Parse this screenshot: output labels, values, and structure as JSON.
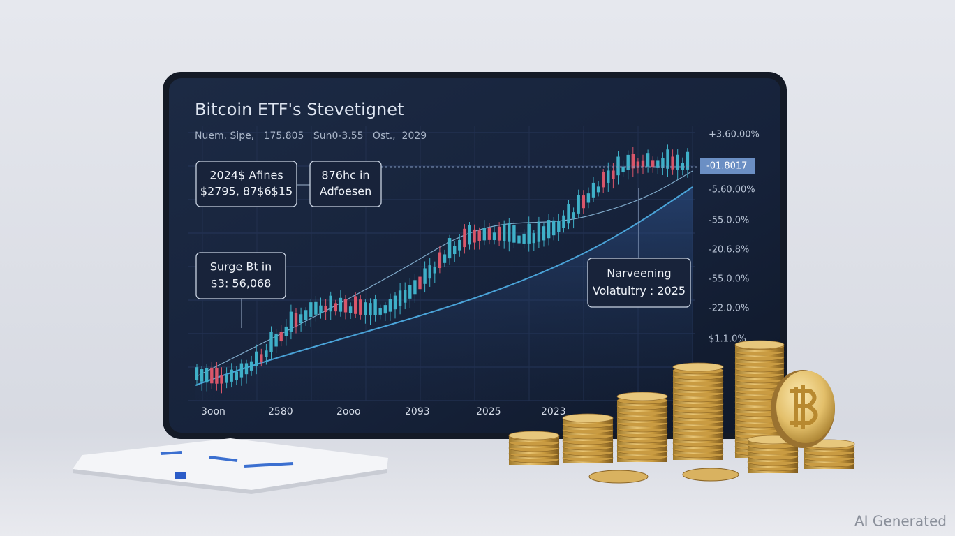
{
  "screen": {
    "title": "Bitcoin ETF's Stevetignet",
    "subtitle": "Nuem. Sipe,   175.805   Sun0-3.55   Ost.,  2029",
    "callouts": [
      {
        "line1": "2024$ Afines",
        "line2": "$2795, 87$6$15"
      },
      {
        "line1": "876hc in",
        "line2": "Adfoesen"
      },
      {
        "line1": "Surge Bt in",
        "line2": "$3: 56,068"
      },
      {
        "line1": "Narveening",
        "line2": "Volatuitry : 2025"
      }
    ],
    "right_axis": [
      "+3.60.00%",
      "-01.8017",
      "-5.60.00%",
      "-55.0.0%",
      "-20.6.8%",
      "-55.0.0%",
      "-22.0.0%",
      "$1.1.0%"
    ],
    "x_axis": [
      "3oon",
      "2580",
      "2ooo",
      "2093",
      "2025",
      "2023"
    ]
  },
  "watermark": "AI Generated"
}
